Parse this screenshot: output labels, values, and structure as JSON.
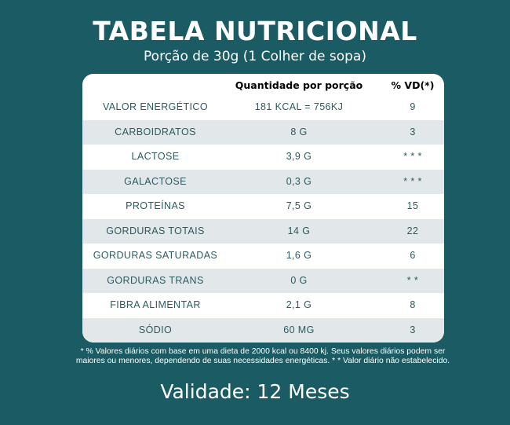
{
  "title": "TABELA NUTRICIONAL",
  "subtitle": "Porção de 30g (1 Colher de sopa)",
  "table": {
    "headers": {
      "name": "",
      "quantity": "Quantidade por porção",
      "vd": "% VD(*)"
    },
    "rows": [
      {
        "name": "VALOR ENERGÉTICO",
        "quantity": "181 KCAL = 756KJ",
        "vd": "9"
      },
      {
        "name": "CARBOIDRATOS",
        "quantity": "8 G",
        "vd": "3"
      },
      {
        "name": "LACTOSE",
        "quantity": "3,9 G",
        "vd": "* * *"
      },
      {
        "name": "GALACTOSE",
        "quantity": "0,3 G",
        "vd": "* * *"
      },
      {
        "name": "PROTEÍNAS",
        "quantity": "7,5 G",
        "vd": "15"
      },
      {
        "name": "GORDURAS TOTAIS",
        "quantity": "14 G",
        "vd": "22"
      },
      {
        "name": "GORDURAS SATURADAS",
        "quantity": "1,6 G",
        "vd": "6"
      },
      {
        "name": "GORDURAS TRANS",
        "quantity": "0 G",
        "vd": "* *"
      },
      {
        "name": "FIBRA ALIMENTAR",
        "quantity": "2,1 G",
        "vd": "8"
      },
      {
        "name": "SÓDIO",
        "quantity": "60 MG",
        "vd": "3"
      }
    ]
  },
  "footnote": "* % Valores diários com base em uma dieta de 2000 kcal ou 8400 kj. Seus valores diários podem ser maiores ou menores, dependendo de suas necessidades energéticas. * * Valor diário não estabelecido.",
  "validity": "Validade: 12 Meses",
  "colors": {
    "background": "#1b5b63",
    "card": "#ffffff",
    "row_alt": "#e2e8ea",
    "row_text": "#2d5a60"
  }
}
